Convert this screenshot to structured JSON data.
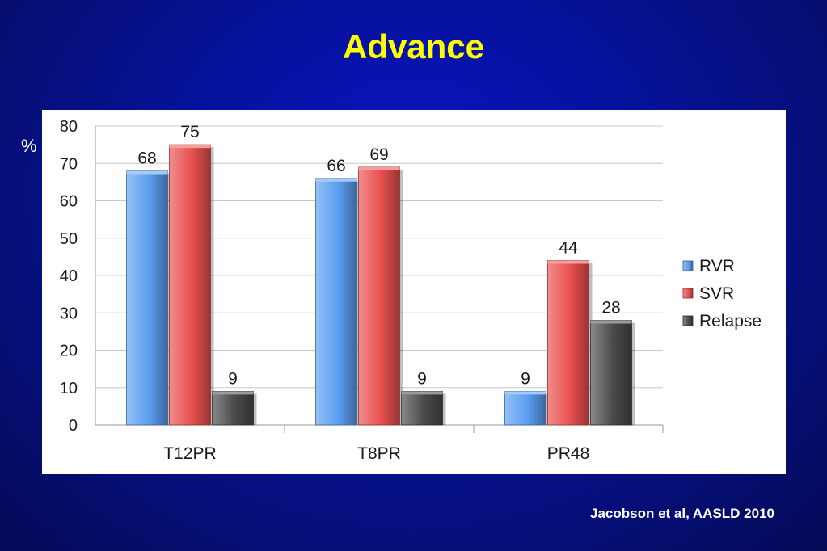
{
  "slide": {
    "title": "Advance",
    "unit_label": "%",
    "citation": "Jacobson et al, AASLD 2010"
  },
  "chart_data": {
    "type": "bar",
    "categories": [
      "T12PR",
      "T8PR",
      "PR48"
    ],
    "series": [
      {
        "name": "RVR",
        "values": [
          68,
          66,
          9
        ],
        "color": "#5b9ef0"
      },
      {
        "name": "SVR",
        "values": [
          75,
          69,
          44
        ],
        "color": "#e8504f"
      },
      {
        "name": "Relapse",
        "values": [
          9,
          9,
          28
        ],
        "color": "#4a4a4a"
      }
    ],
    "title": "",
    "xlabel": "",
    "ylabel": "%",
    "ylim": [
      0,
      80
    ],
    "yticks": [
      0,
      10,
      20,
      30,
      40,
      50,
      60,
      70,
      80
    ],
    "grid": true,
    "legend_position": "right",
    "data_labels": true
  }
}
